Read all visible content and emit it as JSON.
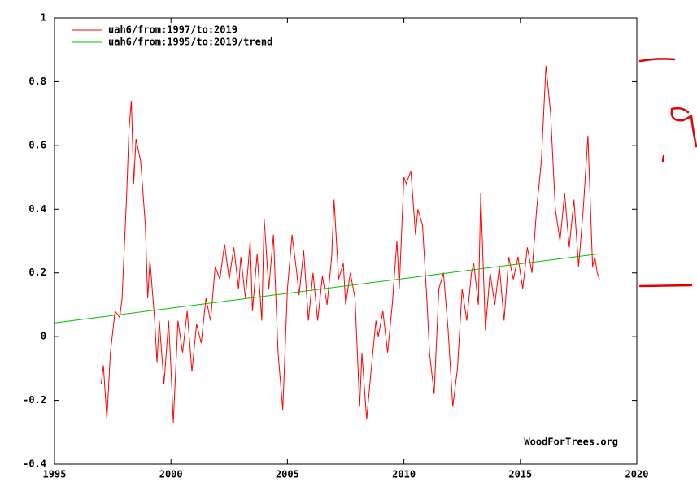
{
  "chart_data": {
    "type": "line",
    "annotations": [
      "WoodForTrees.org"
    ],
    "xlim": [
      1995,
      2020
    ],
    "xticks": [
      1995,
      2000,
      2005,
      2010,
      2015,
      2020
    ],
    "ylim": [
      -0.4,
      1
    ],
    "yticks": [
      -0.4,
      -0.2,
      0,
      0.2,
      0.4,
      0.6,
      0.8,
      1
    ],
    "grid": false,
    "legend": "top-left",
    "series": [
      {
        "name": "uah6/from:1997/to:2019",
        "color": "#ff0000",
        "x": [
          1997.0,
          1997.1,
          1997.25,
          1997.4,
          1997.6,
          1997.8,
          1997.9,
          1998.1,
          1998.2,
          1998.3,
          1998.4,
          1998.5,
          1998.7,
          1998.9,
          1999.0,
          1999.1,
          1999.3,
          1999.4,
          1999.5,
          1999.7,
          1999.9,
          2000.0,
          2000.1,
          2000.3,
          2000.5,
          2000.7,
          2000.9,
          2001.1,
          2001.3,
          2001.5,
          2001.7,
          2001.9,
          2002.1,
          2002.3,
          2002.5,
          2002.7,
          2002.9,
          2003.0,
          2003.2,
          2003.4,
          2003.5,
          2003.7,
          2003.9,
          2004.0,
          2004.2,
          2004.4,
          2004.6,
          2004.8,
          2005.0,
          2005.2,
          2005.4,
          2005.5,
          2005.7,
          2005.9,
          2006.1,
          2006.3,
          2006.5,
          2006.7,
          2006.9,
          2007.0,
          2007.2,
          2007.4,
          2007.5,
          2007.7,
          2007.9,
          2008.1,
          2008.2,
          2008.4,
          2008.6,
          2008.8,
          2008.9,
          2009.1,
          2009.3,
          2009.5,
          2009.7,
          2009.8,
          2010.0,
          2010.1,
          2010.3,
          2010.5,
          2010.6,
          2010.8,
          2011.0,
          2011.1,
          2011.3,
          2011.5,
          2011.7,
          2011.9,
          2012.1,
          2012.3,
          2012.5,
          2012.7,
          2012.9,
          2013.0,
          2013.2,
          2013.3,
          2013.5,
          2013.7,
          2013.9,
          2014.1,
          2014.3,
          2014.5,
          2014.7,
          2014.9,
          2015.1,
          2015.3,
          2015.5,
          2015.7,
          2015.9,
          2016.1,
          2016.3,
          2016.5,
          2016.7,
          2016.9,
          2017.1,
          2017.3,
          2017.5,
          2017.7,
          2017.9,
          2018.1,
          2018.2,
          2018.3,
          2018.4
        ],
        "values": [
          -0.15,
          -0.09,
          -0.26,
          -0.05,
          0.08,
          0.06,
          0.12,
          0.45,
          0.65,
          0.74,
          0.48,
          0.62,
          0.55,
          0.35,
          0.12,
          0.24,
          0.05,
          -0.08,
          0.05,
          -0.15,
          0.05,
          -0.1,
          -0.27,
          0.05,
          -0.05,
          0.08,
          -0.11,
          0.04,
          -0.02,
          0.12,
          0.05,
          0.22,
          0.18,
          0.29,
          0.18,
          0.28,
          0.15,
          0.25,
          0.12,
          0.3,
          0.08,
          0.26,
          0.05,
          0.37,
          0.15,
          0.32,
          -0.05,
          -0.23,
          0.15,
          0.32,
          0.2,
          0.13,
          0.27,
          0.05,
          0.2,
          0.05,
          0.19,
          0.1,
          0.25,
          0.43,
          0.18,
          0.23,
          0.1,
          0.2,
          0.12,
          -0.22,
          -0.05,
          -0.26,
          -0.1,
          0.05,
          0,
          0.08,
          -0.05,
          0.1,
          0.3,
          0.15,
          0.5,
          0.48,
          0.52,
          0.32,
          0.4,
          0.35,
          0.1,
          -0.05,
          -0.18,
          0.15,
          0.2,
          0.02,
          -0.22,
          -0.1,
          0.15,
          0.05,
          0.2,
          0.23,
          0.1,
          0.45,
          0.02,
          0.2,
          0.1,
          0.22,
          0.05,
          0.25,
          0.18,
          0.25,
          0.15,
          0.28,
          0.2,
          0.4,
          0.55,
          0.85,
          0.7,
          0.4,
          0.3,
          0.45,
          0.28,
          0.43,
          0.22,
          0.4,
          0.63,
          0.22,
          0.25,
          0.2,
          0.18
        ]
      },
      {
        "name": "uah6/from:1995/to:2019/trend",
        "color": "#00c000",
        "x": [
          1995,
          2018.4
        ],
        "values": [
          0.043,
          0.26
        ]
      }
    ]
  }
}
